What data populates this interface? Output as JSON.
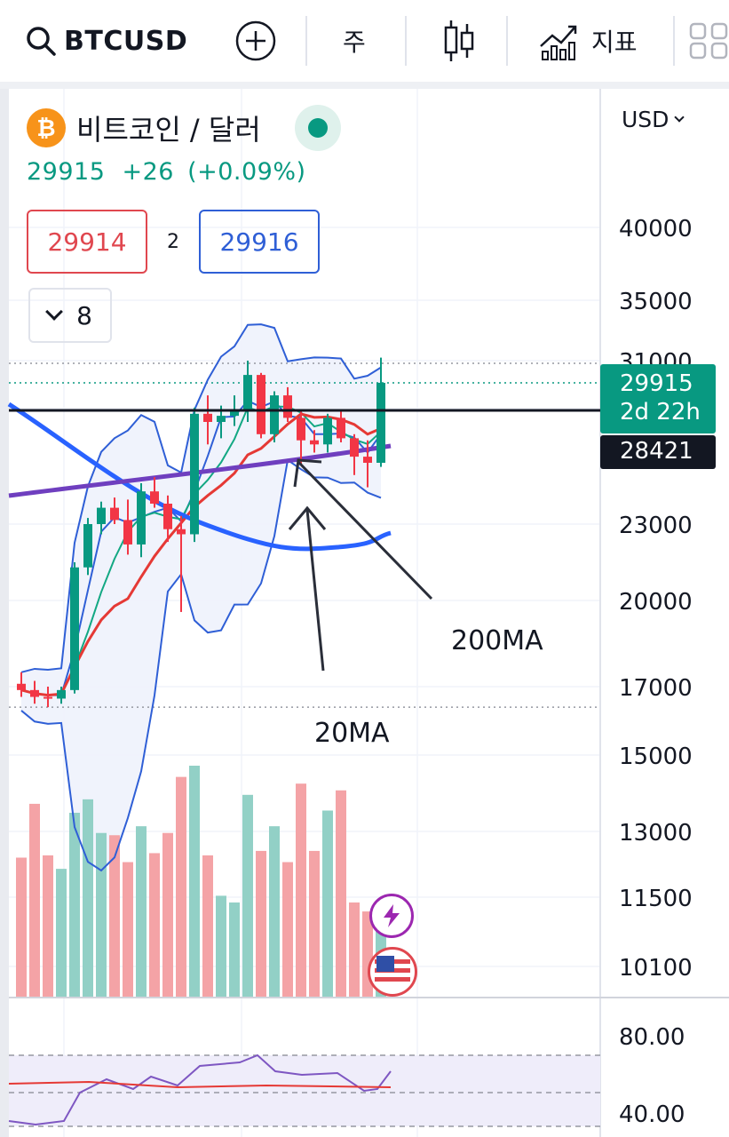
{
  "toolbar": {
    "symbol": "BTCUSD",
    "interval": "주",
    "indicators_label": "지표"
  },
  "legend": {
    "coin_glyph": "₿",
    "name": "비트코인 / 달러",
    "last": "29915",
    "change": "+26",
    "change_pct": "(+0.09%)",
    "bid": "29914",
    "spread": "2",
    "ask": "29916",
    "collapsed_count": "8"
  },
  "currency": "USD",
  "price_axis": {
    "labels": [
      "40000",
      "35000",
      "31000",
      "23000",
      "20000",
      "17000",
      "15000",
      "13000",
      "11500",
      "10100"
    ],
    "current_price": "29915",
    "countdown": "2d 22h",
    "hline_price": "28421"
  },
  "rsi_axis": {
    "labels": [
      "80.00",
      "40.00"
    ]
  },
  "annotations": {
    "ma200": "200MA",
    "ma20": "20MA"
  },
  "colors": {
    "up": "#089981",
    "down": "#f23645",
    "volume_up": "#92d0c6",
    "volume_down": "#f4a3a6",
    "ma_blue": "#2962ff",
    "ma_purple": "#6f3fbf",
    "bb_band": "#2f5fd6",
    "accent_orange": "#f7931a"
  },
  "chart_data": {
    "type": "candlestick",
    "series": [
      {
        "o": 17100,
        "h": 17500,
        "l": 16700,
        "c": 16900
      },
      {
        "o": 16900,
        "h": 17200,
        "l": 16500,
        "c": 16700
      },
      {
        "o": 16700,
        "h": 17000,
        "l": 16400,
        "c": 16650
      },
      {
        "o": 16650,
        "h": 17000,
        "l": 16500,
        "c": 16900
      },
      {
        "o": 16900,
        "h": 21500,
        "l": 16800,
        "c": 21300
      },
      {
        "o": 21300,
        "h": 23300,
        "l": 21000,
        "c": 23000
      },
      {
        "o": 23000,
        "h": 24100,
        "l": 22600,
        "c": 23800
      },
      {
        "o": 23800,
        "h": 24300,
        "l": 23000,
        "c": 23200
      },
      {
        "o": 23200,
        "h": 24200,
        "l": 21800,
        "c": 22200
      },
      {
        "o": 22200,
        "h": 25000,
        "l": 21700,
        "c": 24600
      },
      {
        "o": 24600,
        "h": 25300,
        "l": 23800,
        "c": 24000
      },
      {
        "o": 24000,
        "h": 24400,
        "l": 22300,
        "c": 22800
      },
      {
        "o": 22800,
        "h": 23400,
        "l": 19600,
        "c": 22600
      },
      {
        "o": 22600,
        "h": 28700,
        "l": 22300,
        "c": 28400
      },
      {
        "o": 28400,
        "h": 29300,
        "l": 26900,
        "c": 28000
      },
      {
        "o": 28000,
        "h": 28800,
        "l": 27200,
        "c": 28300
      },
      {
        "o": 28300,
        "h": 29300,
        "l": 27800,
        "c": 28500
      },
      {
        "o": 28500,
        "h": 31000,
        "l": 28000,
        "c": 30300
      },
      {
        "o": 30300,
        "h": 30400,
        "l": 27200,
        "c": 27400
      },
      {
        "o": 27400,
        "h": 29500,
        "l": 27000,
        "c": 29300
      },
      {
        "o": 29300,
        "h": 29700,
        "l": 28000,
        "c": 28200
      },
      {
        "o": 28200,
        "h": 28600,
        "l": 25900,
        "c": 27100
      },
      {
        "o": 27100,
        "h": 27600,
        "l": 26500,
        "c": 26900
      },
      {
        "o": 26900,
        "h": 28400,
        "l": 26500,
        "c": 28200
      },
      {
        "o": 28200,
        "h": 28500,
        "l": 27000,
        "c": 27200
      },
      {
        "o": 27200,
        "h": 27400,
        "l": 25400,
        "c": 26300
      },
      {
        "o": 26300,
        "h": 27100,
        "l": 24800,
        "c": 26000
      },
      {
        "o": 26000,
        "h": 31200,
        "l": 25800,
        "c": 29915
      }
    ],
    "volume": [
      62,
      86,
      63,
      57,
      82,
      88,
      73,
      72,
      60,
      76,
      64,
      73,
      98,
      103,
      63,
      45,
      42,
      90,
      65,
      76,
      60,
      95,
      65,
      83,
      92,
      42,
      38,
      35
    ]
  }
}
